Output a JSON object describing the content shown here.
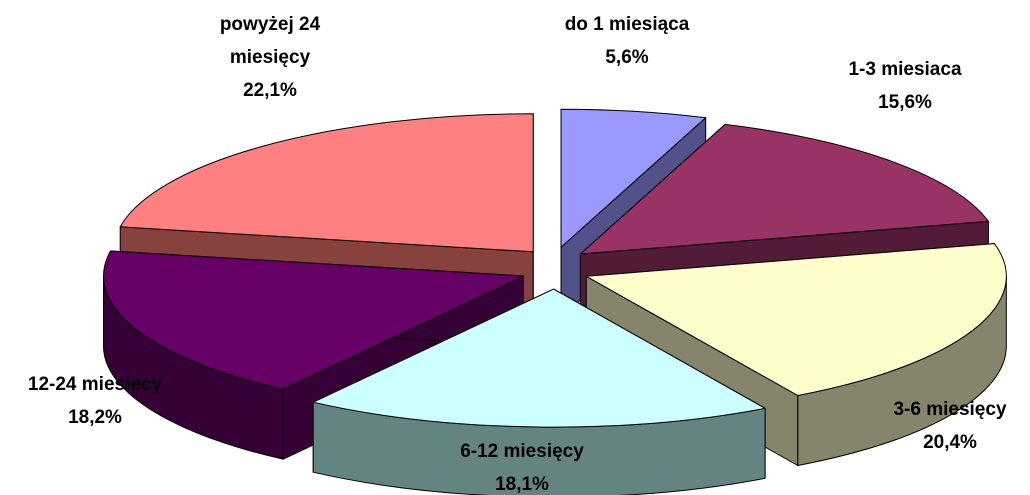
{
  "chart_data": {
    "type": "pie",
    "variant": "exploded-3d",
    "legend": "none",
    "slices": [
      {
        "label_lines": [
          "do 1 miesiąca"
        ],
        "value_label": "5,6%",
        "value": 5.6,
        "top_color": "#9999ff",
        "side_color": "#525189"
      },
      {
        "label_lines": [
          "1-3 miesiaca"
        ],
        "value_label": "15,6%",
        "value": 15.6,
        "top_color": "#993366",
        "side_color": "#521b38"
      },
      {
        "label_lines": [
          "3-6 miesięcy"
        ],
        "value_label": "20,4%",
        "value": 20.4,
        "top_color": "#ffffcc",
        "side_color": "#86856c"
      },
      {
        "label_lines": [
          "6-12 miesięcy"
        ],
        "value_label": "18,1%",
        "value": 18.1,
        "top_color": "#ccffff",
        "side_color": "#648482"
      },
      {
        "label_lines": [
          "12-24 miesiecy"
        ],
        "value_label": "18,2%",
        "value": 18.2,
        "top_color": "#660066",
        "side_color": "#350035"
      },
      {
        "label_lines": [
          "powyżej 24",
          "miesięcy"
        ],
        "value_label": "22,1%",
        "value": 22.1,
        "top_color": "#ff8080",
        "side_color": "#87423e"
      }
    ]
  }
}
